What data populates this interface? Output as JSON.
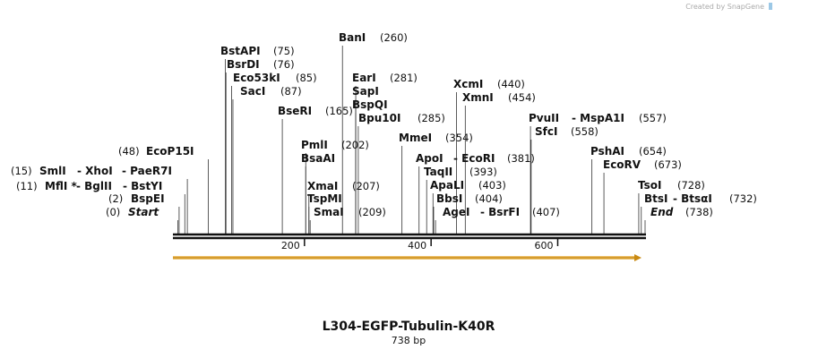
{
  "header": {
    "credit": "Created by SnapGene"
  },
  "map": {
    "length": 738,
    "ticks": [
      200,
      400,
      600
    ],
    "sites": [
      {
        "names": [
          "EcoP15I"
        ],
        "position": 48,
        "label": "(48)"
      },
      {
        "names": [
          "SmlI",
          "- XhoI",
          "- PaeR7I"
        ],
        "position": 15,
        "label": "(15)"
      },
      {
        "names": [
          "MflI *",
          "- BglII",
          "- BstYI"
        ],
        "position": 11,
        "label": "(11)"
      },
      {
        "names": [
          "BspEI"
        ],
        "position": 2,
        "label": "(2)"
      },
      {
        "names": [
          "Start"
        ],
        "position": 0,
        "label": "(0)"
      },
      {
        "names": [
          "BstAPI"
        ],
        "position": 75,
        "label": "(75)"
      },
      {
        "names": [
          "BsrDI"
        ],
        "position": 76,
        "label": "(76)"
      },
      {
        "names": [
          "Eco53kI"
        ],
        "position": 85,
        "label": "(85)"
      },
      {
        "names": [
          "SacI"
        ],
        "position": 87,
        "label": "(87)"
      },
      {
        "names": [
          "BseRI"
        ],
        "position": 165,
        "label": "(165)"
      },
      {
        "names": [
          "BanI"
        ],
        "position": 260,
        "label": "(260)"
      },
      {
        "names": [
          "EarI"
        ],
        "position": 281,
        "label": "(281)"
      },
      {
        "names": [
          "SapI"
        ],
        "position": 281,
        "label": null
      },
      {
        "names": [
          "BspQI"
        ],
        "position": 281,
        "label": null
      },
      {
        "names": [
          "Bpu10I"
        ],
        "position": 285,
        "label": "(285)"
      },
      {
        "names": [
          "PmlI"
        ],
        "position": 202,
        "label": "(202)"
      },
      {
        "names": [
          "BsaAI"
        ],
        "position": 202,
        "label": null
      },
      {
        "names": [
          "XmaI"
        ],
        "position": 207,
        "label": "(207)"
      },
      {
        "names": [
          "TspMI"
        ],
        "position": 207,
        "label": null
      },
      {
        "names": [
          "SmaI"
        ],
        "position": 209,
        "label": "(209)"
      },
      {
        "names": [
          "MmeI"
        ],
        "position": 354,
        "label": "(354)"
      },
      {
        "names": [
          "XcmI"
        ],
        "position": 440,
        "label": "(440)"
      },
      {
        "names": [
          "XmnI"
        ],
        "position": 454,
        "label": "(454)"
      },
      {
        "names": [
          "ApoI",
          "- EcoRI"
        ],
        "position": 381,
        "label": "(381)"
      },
      {
        "names": [
          "TaqII"
        ],
        "position": 393,
        "label": "(393)"
      },
      {
        "names": [
          "ApaLI"
        ],
        "position": 403,
        "label": "(403)"
      },
      {
        "names": [
          "BbsI"
        ],
        "position": 404,
        "label": "(404)"
      },
      {
        "names": [
          "AgeI",
          "- BsrFI"
        ],
        "position": 407,
        "label": "(407)"
      },
      {
        "names": [
          "PvuII",
          "- MspA1I"
        ],
        "position": 557,
        "label": "(557)"
      },
      {
        "names": [
          "SfcI"
        ],
        "position": 558,
        "label": "(558)"
      },
      {
        "names": [
          "PshAI"
        ],
        "position": 654,
        "label": "(654)"
      },
      {
        "names": [
          "EcoRV"
        ],
        "position": 673,
        "label": "(673)"
      },
      {
        "names": [
          "TsoI"
        ],
        "position": 728,
        "label": "(728)"
      },
      {
        "names": [
          "BtsI",
          "- BtsαI"
        ],
        "position": 732,
        "label": "(732)"
      },
      {
        "names": [
          "End"
        ],
        "position": 738,
        "label": "(738)"
      }
    ]
  },
  "footer": {
    "title": "L304-EGFP-Tubulin-K40R",
    "size": "738 bp"
  }
}
